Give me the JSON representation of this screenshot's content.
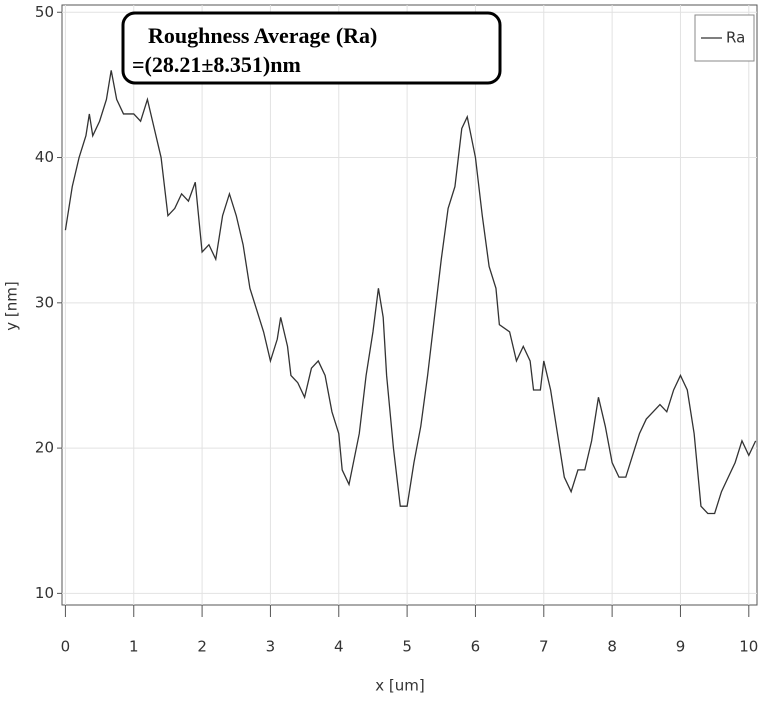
{
  "chart_data": {
    "type": "line",
    "annotation": [
      "Roughness Average (Ra)",
      "=(28.21±8.351)nm"
    ],
    "xlabel": "x [um]",
    "ylabel": "y [nm]",
    "x": [
      0,
      0.1,
      0.2,
      0.3,
      0.35,
      0.4,
      0.5,
      0.6,
      0.67,
      0.75,
      0.85,
      1.0,
      1.1,
      1.2,
      1.3,
      1.4,
      1.5,
      1.6,
      1.7,
      1.8,
      1.9,
      2.0,
      2.1,
      2.2,
      2.3,
      2.4,
      2.5,
      2.6,
      2.7,
      2.8,
      2.9,
      3.0,
      3.1,
      3.15,
      3.25,
      3.3,
      3.4,
      3.5,
      3.6,
      3.7,
      3.8,
      3.9,
      4.0,
      4.05,
      4.15,
      4.3,
      4.4,
      4.5,
      4.58,
      4.65,
      4.7,
      4.8,
      4.9,
      5.0,
      5.1,
      5.2,
      5.3,
      5.4,
      5.5,
      5.6,
      5.7,
      5.8,
      5.88,
      6.0,
      6.1,
      6.2,
      6.3,
      6.35,
      6.5,
      6.6,
      6.7,
      6.8,
      6.85,
      6.95,
      7.0,
      7.1,
      7.2,
      7.3,
      7.4,
      7.5,
      7.6,
      7.7,
      7.8,
      7.9,
      8.0,
      8.1,
      8.2,
      8.3,
      8.4,
      8.5,
      8.6,
      8.7,
      8.8,
      8.9,
      9.0,
      9.1,
      9.2,
      9.3,
      9.4,
      9.5,
      9.6,
      9.7,
      9.8,
      9.9,
      10.0,
      10.1
    ],
    "series": [
      {
        "name": "Ra",
        "color": "#333333",
        "values": [
          35,
          38,
          40,
          41.5,
          43,
          41.5,
          42.5,
          44,
          46,
          44,
          43,
          43,
          42.5,
          44,
          42,
          40,
          36,
          36.5,
          37.5,
          37,
          38.3,
          33.5,
          34,
          33,
          36,
          37.5,
          36,
          34,
          31,
          29.5,
          28,
          26,
          27.5,
          29,
          27,
          25,
          24.5,
          23.5,
          25.5,
          26,
          25,
          22.5,
          21,
          18.5,
          17.5,
          21,
          25,
          28,
          31,
          29,
          25,
          20,
          16,
          16,
          19,
          21.5,
          25,
          29,
          33,
          36.5,
          38,
          42,
          42.8,
          40,
          36,
          32.5,
          31,
          28.5,
          28,
          26,
          27,
          26,
          24,
          24,
          26,
          24,
          21,
          18,
          17,
          18.5,
          18.5,
          20.5,
          23.5,
          21.5,
          19,
          18,
          18,
          19.5,
          21,
          22,
          22.5,
          23,
          22.5,
          24,
          25,
          24,
          21,
          16,
          15.5,
          15.5,
          17,
          18,
          19,
          20.5,
          19.5,
          20.5
        ]
      }
    ],
    "xlim": [
      -0.05,
      10.12
    ],
    "ylim": [
      9.2,
      50.5
    ],
    "xticks": [
      0,
      1,
      2,
      3,
      4,
      5,
      6,
      7,
      8,
      9,
      10
    ],
    "yticks": [
      10,
      20,
      30,
      40,
      50
    ],
    "grid": true
  }
}
